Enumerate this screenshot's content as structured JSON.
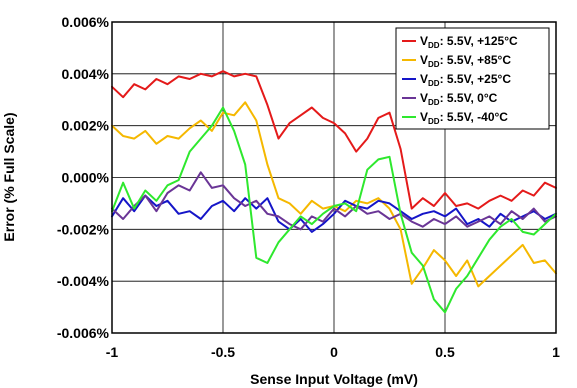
{
  "chart_data": {
    "type": "line",
    "title": "",
    "xlabel": "Sense Input Voltage (mV)",
    "ylabel": "Error (% Full Scale)",
    "xlim": [
      -1,
      1
    ],
    "ylim": [
      -0.006,
      0.006
    ],
    "grid": true,
    "legend_position": "top-right",
    "x_ticks": [
      -1,
      -0.5,
      0,
      0.5,
      1
    ],
    "x_tick_labels": [
      "-1",
      "-0.5",
      "0",
      "0.5",
      "1"
    ],
    "y_ticks": [
      -0.006,
      -0.004,
      -0.002,
      0.0,
      0.002,
      0.004,
      0.006
    ],
    "y_tick_labels": [
      "-0.006%",
      "-0.004%",
      "-0.002%",
      "0.000%",
      "0.002%",
      "0.004%",
      "0.006%"
    ],
    "series": [
      {
        "name": "VDD: 5.5V, +125°C",
        "label_parts": {
          "v": "V",
          "sub": "DD",
          "rest": ": 5.5V, +125°C"
        },
        "color": "#e41a1a",
        "x": [
          -1.0,
          -0.95,
          -0.9,
          -0.85,
          -0.8,
          -0.75,
          -0.7,
          -0.65,
          -0.6,
          -0.55,
          -0.5,
          -0.45,
          -0.4,
          -0.35,
          -0.3,
          -0.25,
          -0.2,
          -0.15,
          -0.1,
          -0.05,
          0.0,
          0.05,
          0.1,
          0.15,
          0.2,
          0.25,
          0.3,
          0.35,
          0.4,
          0.45,
          0.5,
          0.55,
          0.6,
          0.65,
          0.7,
          0.75,
          0.8,
          0.85,
          0.9,
          0.95,
          1.0
        ],
        "y": [
          0.0035,
          0.0031,
          0.0036,
          0.0034,
          0.0038,
          0.0036,
          0.0039,
          0.0038,
          0.004,
          0.0039,
          0.0041,
          0.0039,
          0.004,
          0.0039,
          0.0028,
          0.0015,
          0.0021,
          0.0024,
          0.0027,
          0.0023,
          0.0021,
          0.0017,
          0.001,
          0.0015,
          0.0023,
          0.0025,
          0.0011,
          -0.0012,
          -0.0008,
          -0.0011,
          -0.0006,
          -0.0011,
          -0.001,
          -0.0012,
          -0.0009,
          -0.0007,
          -0.0009,
          -0.0005,
          -0.0007,
          -0.0002,
          -0.0004
        ]
      },
      {
        "name": "VDD: 5.5V, +85°C",
        "label_parts": {
          "v": "V",
          "sub": "DD",
          "rest": ": 5.5V, +85°C"
        },
        "color": "#f5b800",
        "x": [
          -1.0,
          -0.95,
          -0.9,
          -0.85,
          -0.8,
          -0.75,
          -0.7,
          -0.65,
          -0.6,
          -0.55,
          -0.5,
          -0.45,
          -0.4,
          -0.35,
          -0.3,
          -0.25,
          -0.2,
          -0.15,
          -0.1,
          -0.05,
          0.0,
          0.05,
          0.1,
          0.15,
          0.2,
          0.25,
          0.3,
          0.35,
          0.4,
          0.45,
          0.5,
          0.55,
          0.6,
          0.65,
          0.7,
          0.75,
          0.8,
          0.85,
          0.9,
          0.95,
          1.0
        ],
        "y": [
          0.002,
          0.0016,
          0.0015,
          0.0018,
          0.0013,
          0.0016,
          0.0015,
          0.0019,
          0.0022,
          0.0018,
          0.0025,
          0.0024,
          0.0029,
          0.0022,
          0.0005,
          -0.0008,
          -0.001,
          -0.0014,
          -0.0009,
          -0.0012,
          -0.0011,
          -0.0013,
          -0.0009,
          -0.001,
          -0.0008,
          -0.0012,
          -0.002,
          -0.0041,
          -0.0035,
          -0.0028,
          -0.0032,
          -0.0038,
          -0.0032,
          -0.0042,
          -0.0038,
          -0.0034,
          -0.003,
          -0.0026,
          -0.0033,
          -0.0032,
          -0.0037
        ]
      },
      {
        "name": "VDD: 5.5V, +25°C",
        "label_parts": {
          "v": "V",
          "sub": "DD",
          "rest": ": 5.5V, +25°C"
        },
        "color": "#1515c8",
        "x": [
          -1.0,
          -0.95,
          -0.9,
          -0.85,
          -0.8,
          -0.75,
          -0.7,
          -0.65,
          -0.6,
          -0.55,
          -0.5,
          -0.45,
          -0.4,
          -0.35,
          -0.3,
          -0.25,
          -0.2,
          -0.15,
          -0.1,
          -0.05,
          0.0,
          0.05,
          0.1,
          0.15,
          0.2,
          0.25,
          0.3,
          0.35,
          0.4,
          0.45,
          0.5,
          0.55,
          0.6,
          0.65,
          0.7,
          0.75,
          0.8,
          0.85,
          0.9,
          0.95,
          1.0
        ],
        "y": [
          -0.0015,
          -0.0008,
          -0.0013,
          -0.0007,
          -0.0011,
          -0.0009,
          -0.0014,
          -0.0013,
          -0.0016,
          -0.0011,
          -0.0009,
          -0.0013,
          -0.0008,
          -0.0012,
          -0.0008,
          -0.0017,
          -0.002,
          -0.0016,
          -0.0021,
          -0.0018,
          -0.0014,
          -0.0009,
          -0.0011,
          -0.0012,
          -0.0009,
          -0.001,
          -0.0013,
          -0.0016,
          -0.0014,
          -0.0013,
          -0.0015,
          -0.0012,
          -0.0018,
          -0.0016,
          -0.0019,
          -0.0014,
          -0.0017,
          -0.0015,
          -0.0013,
          -0.0016,
          -0.0014
        ]
      },
      {
        "name": "VDD: 5.5V, 0°C",
        "label_parts": {
          "v": "V",
          "sub": "DD",
          "rest": ": 5.5V, 0°C"
        },
        "color": "#6a3596",
        "x": [
          -1.0,
          -0.95,
          -0.9,
          -0.85,
          -0.8,
          -0.75,
          -0.7,
          -0.65,
          -0.6,
          -0.55,
          -0.5,
          -0.45,
          -0.4,
          -0.35,
          -0.3,
          -0.25,
          -0.2,
          -0.15,
          -0.1,
          -0.05,
          0.0,
          0.05,
          0.1,
          0.15,
          0.2,
          0.25,
          0.3,
          0.35,
          0.4,
          0.45,
          0.5,
          0.55,
          0.6,
          0.65,
          0.7,
          0.75,
          0.8,
          0.85,
          0.9,
          0.95,
          1.0
        ],
        "y": [
          -0.0012,
          -0.0016,
          -0.0011,
          -0.0007,
          -0.0013,
          -0.0006,
          -0.0003,
          -0.0005,
          0.0002,
          -0.0004,
          -0.0003,
          -0.0008,
          -0.0011,
          -0.0009,
          -0.0014,
          -0.0015,
          -0.0018,
          -0.002,
          -0.0015,
          -0.0017,
          -0.0012,
          -0.0015,
          -0.0011,
          -0.0014,
          -0.0013,
          -0.0016,
          -0.0014,
          -0.0017,
          -0.0019,
          -0.0016,
          -0.0018,
          -0.0015,
          -0.0019,
          -0.0017,
          -0.0015,
          -0.0018,
          -0.0013,
          -0.0016,
          -0.0012,
          -0.0017,
          -0.0015
        ]
      },
      {
        "name": "VDD: 5.5V, -40°C",
        "label_parts": {
          "v": "V",
          "sub": "DD",
          "rest": ": 5.5V, -40°C"
        },
        "color": "#2ee82e",
        "x": [
          -1.0,
          -0.95,
          -0.9,
          -0.85,
          -0.8,
          -0.75,
          -0.7,
          -0.65,
          -0.6,
          -0.55,
          -0.5,
          -0.45,
          -0.4,
          -0.35,
          -0.3,
          -0.25,
          -0.2,
          -0.15,
          -0.1,
          -0.05,
          0.0,
          0.05,
          0.1,
          0.15,
          0.2,
          0.25,
          0.3,
          0.35,
          0.4,
          0.45,
          0.5,
          0.55,
          0.6,
          0.65,
          0.7,
          0.75,
          0.8,
          0.85,
          0.9,
          0.95,
          1.0
        ],
        "y": [
          -0.0013,
          -0.0002,
          -0.0012,
          -0.0005,
          -0.0009,
          -0.0003,
          -0.0001,
          0.001,
          0.0015,
          0.002,
          0.0027,
          0.0018,
          0.0005,
          -0.0031,
          -0.0033,
          -0.0025,
          -0.002,
          -0.0015,
          -0.0018,
          -0.0014,
          -0.0011,
          -0.001,
          -0.0013,
          0.0003,
          0.0007,
          0.0008,
          -0.0014,
          -0.0029,
          -0.0034,
          -0.0047,
          -0.0052,
          -0.0043,
          -0.0038,
          -0.0031,
          -0.0024,
          -0.0019,
          -0.0016,
          -0.0021,
          -0.0022,
          -0.0018,
          -0.0014
        ]
      }
    ]
  }
}
